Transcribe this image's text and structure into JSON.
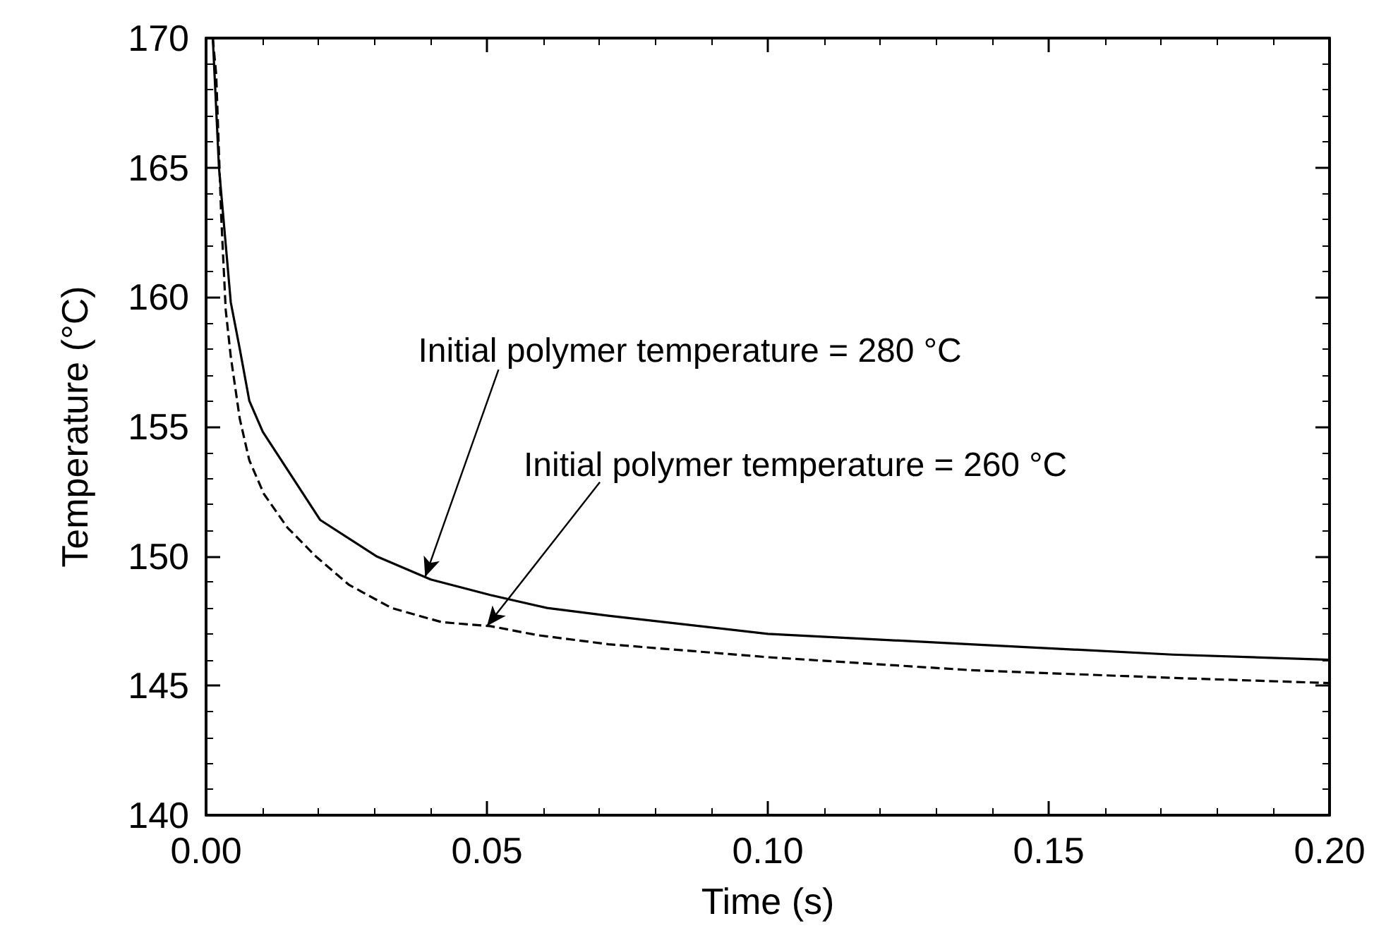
{
  "chart_data": {
    "type": "line",
    "xlabel": "Time (s)",
    "ylabel": "Temperature (°C)",
    "xlim": [
      0,
      0.2
    ],
    "xticks": [
      {
        "value": 0,
        "label": "0.00"
      },
      {
        "value": 0.05,
        "label": "0.05"
      },
      {
        "value": 0.1,
        "label": "0.10"
      },
      {
        "value": 0.15,
        "label": "0.15"
      },
      {
        "value": 0.2,
        "label": "0.20"
      }
    ],
    "ylim": [
      140,
      170
    ],
    "yticks": [
      140,
      145,
      150,
      155,
      160,
      165,
      170
    ],
    "grid": false,
    "marker": "none",
    "series": [
      {
        "color": "#000000",
        "line_style": "solid",
        "x": [
          0.0012,
          0.0023,
          0.0044,
          0.006,
          0.0077,
          0.0101,
          0.0203,
          0.0303,
          0.04,
          0.0506,
          0.0607,
          0.0716,
          0.1,
          0.136,
          0.172,
          0.2
        ],
        "values": [
          170,
          165,
          159.8,
          158,
          156,
          154.8,
          151.4,
          150,
          149.1,
          148.5,
          148,
          147.7,
          147,
          146.6,
          146.2,
          146
        ]
      },
      {
        "color": "#000000",
        "line_style": "dashed",
        "x": [
          0.0012,
          0.0018,
          0.0027,
          0.0035,
          0.0044,
          0.006,
          0.0077,
          0.0103,
          0.0145,
          0.0195,
          0.0254,
          0.033,
          0.042,
          0.0506,
          0.059,
          0.0716,
          0.1,
          0.136,
          0.172,
          0.2
        ],
        "values": [
          170,
          168.6,
          163.1,
          159.5,
          157.7,
          155.3,
          153.7,
          152.4,
          151.1,
          150,
          148.9,
          148,
          147.45,
          147.3,
          146.95,
          146.6,
          146.1,
          145.6,
          145.3,
          145.1
        ]
      }
    ],
    "annotations": [
      {
        "text": "Initial polymer temperature = 280 °C",
        "x": 0.039,
        "y": 149.2
      },
      {
        "text": "Initial polymer temperature = 260 °C",
        "x": 0.05,
        "y": 147.3
      }
    ]
  }
}
